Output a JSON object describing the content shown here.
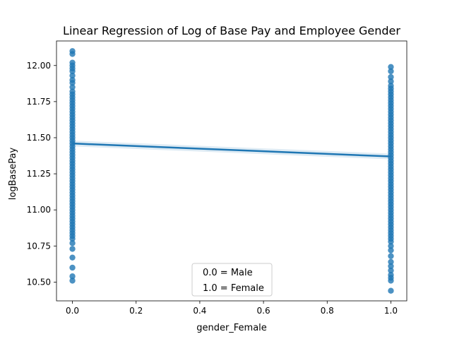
{
  "chart_data": {
    "type": "scatter",
    "title": "Linear Regression of Log of Base Pay and Employee Gender",
    "xlabel": "gender_Female",
    "ylabel": "logBasePay",
    "xlim": [
      -0.05,
      1.05
    ],
    "ylim": [
      10.37,
      12.17
    ],
    "x_ticks": [
      0.0,
      0.2,
      0.4,
      0.6,
      0.8,
      1.0
    ],
    "x_tick_labels": [
      "0.0",
      "0.2",
      "0.4",
      "0.6",
      "0.8",
      "1.0"
    ],
    "y_ticks": [
      10.5,
      10.75,
      11.0,
      11.25,
      11.5,
      11.75,
      12.0
    ],
    "y_tick_labels": [
      "10.50",
      "10.75",
      "11.00",
      "11.25",
      "11.50",
      "11.75",
      "12.00"
    ],
    "grid": false,
    "point_color": "#1f77b4",
    "line_color": "#1f77b4",
    "ci_color": "#1f77b4",
    "series": [
      {
        "x_value": 0.0,
        "y_values": [
          12.1,
          12.08,
          12.02,
          12.0,
          11.98,
          11.96,
          11.93,
          11.9,
          11.88,
          11.85,
          11.82,
          11.8,
          11.78,
          11.76,
          11.74,
          11.72,
          11.7,
          11.68,
          11.66,
          11.64,
          11.62,
          11.6,
          11.58,
          11.56,
          11.54,
          11.52,
          11.5,
          11.48,
          11.46,
          11.44,
          11.42,
          11.4,
          11.38,
          11.36,
          11.34,
          11.32,
          11.3,
          11.28,
          11.26,
          11.24,
          11.22,
          11.2,
          11.18,
          11.16,
          11.14,
          11.12,
          11.1,
          11.08,
          11.06,
          11.04,
          11.02,
          11.0,
          10.98,
          10.96,
          10.94,
          10.92,
          10.9,
          10.88,
          10.86,
          10.84,
          10.82,
          10.8,
          10.77,
          10.73,
          10.67,
          10.6,
          10.54,
          10.51
        ]
      },
      {
        "x_value": 1.0,
        "y_values": [
          11.99,
          11.96,
          11.92,
          11.89,
          11.86,
          11.84,
          11.82,
          11.8,
          11.78,
          11.76,
          11.74,
          11.72,
          11.7,
          11.68,
          11.66,
          11.64,
          11.62,
          11.6,
          11.58,
          11.56,
          11.54,
          11.52,
          11.5,
          11.48,
          11.46,
          11.44,
          11.42,
          11.4,
          11.38,
          11.36,
          11.34,
          11.32,
          11.3,
          11.28,
          11.26,
          11.24,
          11.22,
          11.2,
          11.18,
          11.16,
          11.14,
          11.12,
          11.1,
          11.08,
          11.06,
          11.04,
          11.02,
          11.0,
          10.98,
          10.96,
          10.94,
          10.92,
          10.9,
          10.88,
          10.86,
          10.84,
          10.82,
          10.8,
          10.78,
          10.75,
          10.72,
          10.68,
          10.64,
          10.61,
          10.58,
          10.55,
          10.53,
          10.51,
          10.44
        ]
      }
    ],
    "regression": {
      "x": [
        0.0,
        1.0
      ],
      "y": [
        11.46,
        11.37
      ],
      "ci_lower": [
        11.44,
        11.35
      ],
      "ci_upper": [
        11.48,
        11.39
      ]
    },
    "legend": {
      "placement": "bottom-center",
      "entries": [
        "0.0 = Male",
        "1.0 = Female"
      ]
    }
  }
}
